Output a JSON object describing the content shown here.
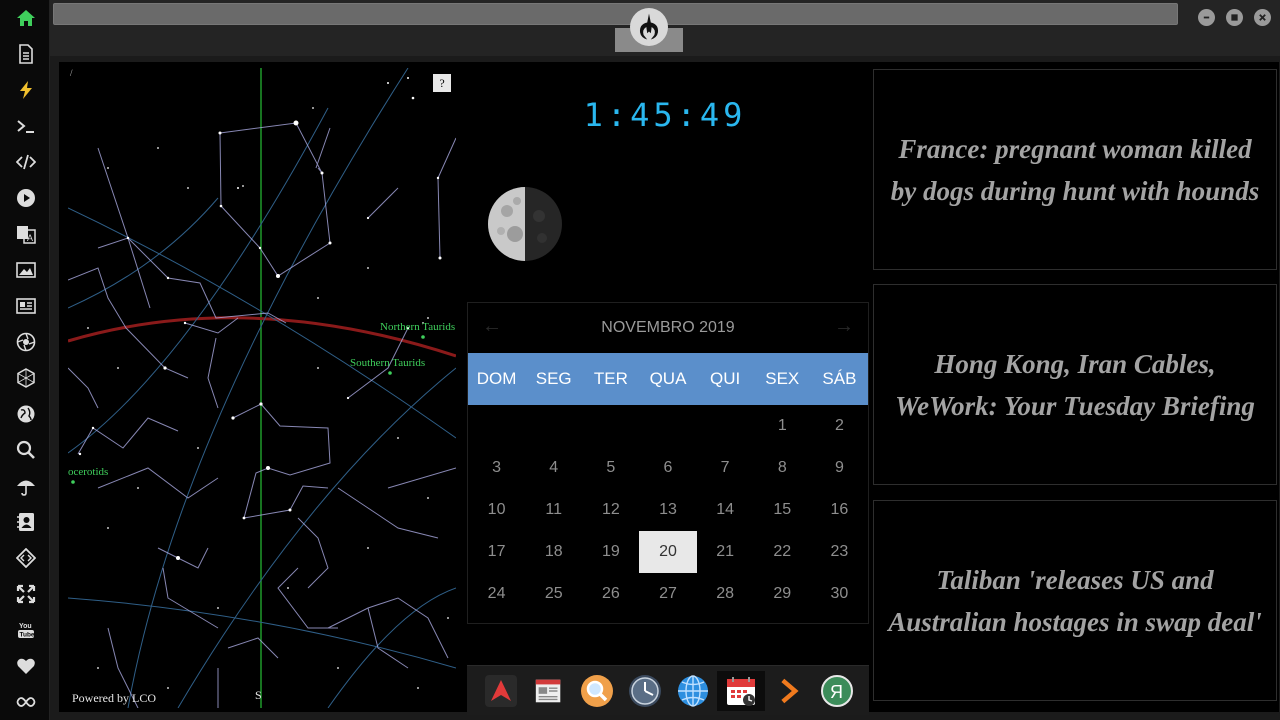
{
  "sidebar": {
    "items": [
      {
        "icon": "home-icon",
        "active": true
      },
      {
        "icon": "document-icon"
      },
      {
        "icon": "lightning-icon"
      },
      {
        "icon": "terminal-icon"
      },
      {
        "icon": "code-icon"
      },
      {
        "icon": "play-icon"
      },
      {
        "icon": "translate-icon"
      },
      {
        "icon": "image-icon"
      },
      {
        "icon": "news-icon"
      },
      {
        "icon": "aperture-icon"
      },
      {
        "icon": "hexagon-icon"
      },
      {
        "icon": "globe-icon"
      },
      {
        "icon": "search-icon"
      },
      {
        "icon": "umbrella-icon"
      },
      {
        "icon": "contacts-icon"
      },
      {
        "icon": "code-tag-icon"
      },
      {
        "icon": "expand-icon"
      },
      {
        "icon": "youtube-icon"
      },
      {
        "icon": "heart-icon"
      },
      {
        "icon": "infinity-icon"
      }
    ]
  },
  "sky_map": {
    "help": "?",
    "labels": {
      "northern": "Northern Taurids",
      "southern": "Southern Taurids",
      "monocerotids": "ocerotids"
    },
    "powered_by": "Powered by LCO",
    "compass_south": "S"
  },
  "clock": {
    "time": "1:45:49"
  },
  "calendar": {
    "month_title": "NOVEMBRO 2019",
    "prev": "←",
    "next": "→",
    "weekdays": [
      "DOM",
      "SEG",
      "TER",
      "QUA",
      "QUI",
      "SEX",
      "SÁB"
    ],
    "selected_day": "20",
    "weeks": [
      [
        "",
        "",
        "",
        "",
        "",
        "1",
        "2"
      ],
      [
        "3",
        "4",
        "5",
        "6",
        "7",
        "8",
        "9"
      ],
      [
        "10",
        "11",
        "12",
        "13",
        "14",
        "15",
        "16"
      ],
      [
        "17",
        "18",
        "19",
        "20",
        "21",
        "22",
        "23"
      ],
      [
        "24",
        "25",
        "26",
        "27",
        "28",
        "29",
        "30"
      ]
    ]
  },
  "dock": {
    "items": [
      {
        "icon": "arch-logo-icon"
      },
      {
        "icon": "newspaper-icon"
      },
      {
        "icon": "magnifier-icon"
      },
      {
        "icon": "clock-icon"
      },
      {
        "icon": "globe-icon"
      },
      {
        "icon": "calendar-icon",
        "active": true
      },
      {
        "icon": "arrow-right-icon"
      },
      {
        "icon": "yandex-icon"
      }
    ]
  },
  "news": [
    "France: pregnant woman killed by dogs during hunt with hounds",
    "Hong Kong, Iran Cables, WeWork: Your Tuesday Briefing",
    "Taliban 'releases US and Australian hostages in swap deal'"
  ]
}
